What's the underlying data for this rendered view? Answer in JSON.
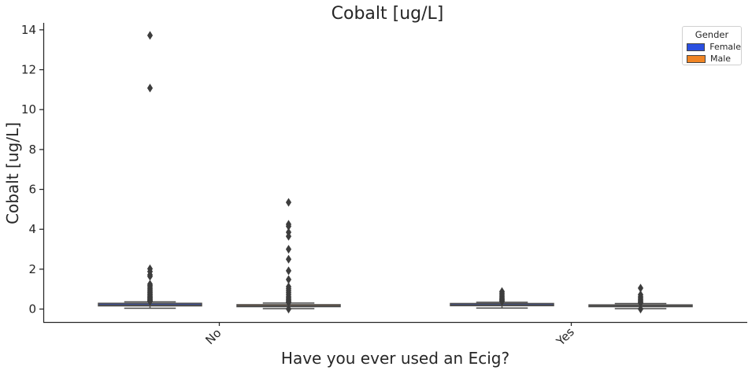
{
  "chart_data": {
    "type": "box",
    "title": "Cobalt [ug/L]",
    "xlabel": "Have you ever used an Ecig?",
    "ylabel": "Cobalt [ug/L]",
    "categories": [
      "No",
      "Yes"
    ],
    "ylim": [
      -0.65,
      14.35
    ],
    "yticks": [
      0,
      2,
      4,
      6,
      8,
      10,
      12,
      14
    ],
    "legend": {
      "title": "Gender",
      "position": "top-right",
      "entries": [
        {
          "label": "Female",
          "color": "#2a4fe0"
        },
        {
          "label": "Male",
          "color": "#f08524"
        }
      ]
    },
    "series": [
      {
        "name": "Female",
        "color": "#2a4fe0",
        "boxes": [
          {
            "category": "No",
            "whisker_low": 0.04,
            "q1": 0.16,
            "median": 0.21,
            "q3": 0.29,
            "whisker_high": 0.36,
            "outliers": [
              13.72,
              11.08,
              2.02,
              1.88,
              1.72,
              1.64,
              1.25,
              1.18,
              1.1,
              1.02,
              0.95,
              0.88,
              0.82,
              0.76,
              0.7,
              0.65,
              0.6,
              0.55,
              0.5,
              0.46,
              0.42,
              0.39
            ]
          },
          {
            "category": "Yes",
            "whisker_low": 0.05,
            "q1": 0.17,
            "median": 0.21,
            "q3": 0.28,
            "whisker_high": 0.34,
            "outliers": [
              0.88,
              0.8,
              0.72,
              0.65,
              0.58,
              0.52,
              0.47,
              0.42,
              0.38
            ]
          }
        ]
      },
      {
        "name": "Male",
        "color": "#f08524",
        "boxes": [
          {
            "category": "No",
            "whisker_low": 0.02,
            "q1": 0.12,
            "median": 0.16,
            "q3": 0.22,
            "whisker_high": 0.3,
            "outliers": [
              5.35,
              4.25,
              4.15,
              3.85,
              3.65,
              3.0,
              2.5,
              1.92,
              1.48,
              1.12,
              1.02,
              0.92,
              0.82,
              0.72,
              0.62,
              0.55,
              0.48,
              0.42,
              0.36,
              0.32,
              0.0
            ]
          },
          {
            "category": "Yes",
            "whisker_low": 0.02,
            "q1": 0.12,
            "median": 0.16,
            "q3": 0.21,
            "whisker_high": 0.28,
            "outliers": [
              1.05,
              0.72,
              0.62,
              0.55,
              0.48,
              0.42,
              0.36,
              0.31,
              0.0
            ]
          }
        ]
      }
    ]
  }
}
